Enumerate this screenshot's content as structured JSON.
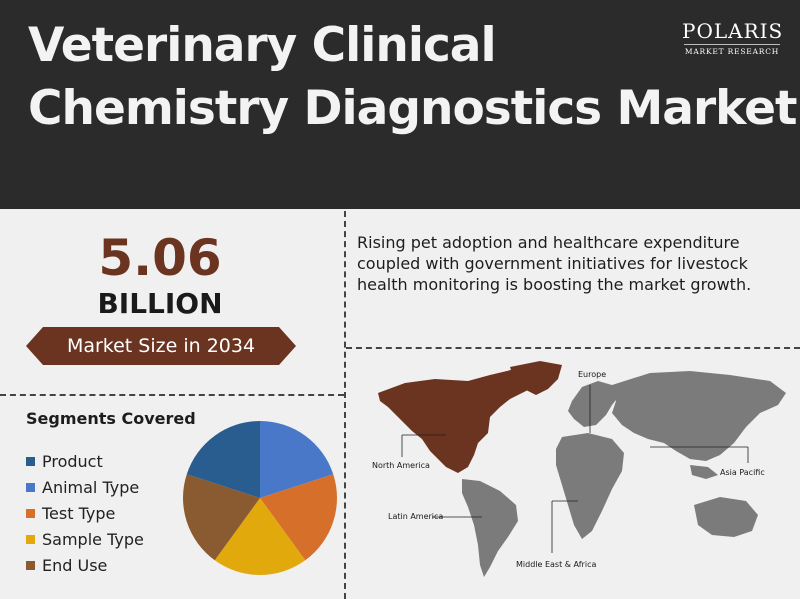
{
  "title": {
    "line1": "Veterinary Clinical",
    "line2": "Chemistry Diagnostics Market"
  },
  "logo": {
    "name": "POLARIS",
    "subtitle": "MARKET RESEARCH"
  },
  "market_size": {
    "value": "5.06",
    "unit": "BILLION",
    "label": "Market Size in 2034"
  },
  "description": "Rising pet adoption and healthcare expenditure coupled with government initiatives for livestock health monitoring is boosting the market growth.",
  "segments": {
    "title": "Segments Covered",
    "items": [
      {
        "label": "Product",
        "color": "#2a5d8f"
      },
      {
        "label": "Animal Type",
        "color": "#4a78c8"
      },
      {
        "label": "Test Type",
        "color": "#d66f2a"
      },
      {
        "label": "Sample Type",
        "color": "#e2a90c"
      },
      {
        "label": "End Use",
        "color": "#8a5a30"
      }
    ]
  },
  "map": {
    "highlight_color": "#6a3420",
    "base_color": "#7b7b7b",
    "regions": [
      "North America",
      "Europe",
      "Asia Pacific",
      "Latin America",
      "Middle East & Africa"
    ]
  }
}
